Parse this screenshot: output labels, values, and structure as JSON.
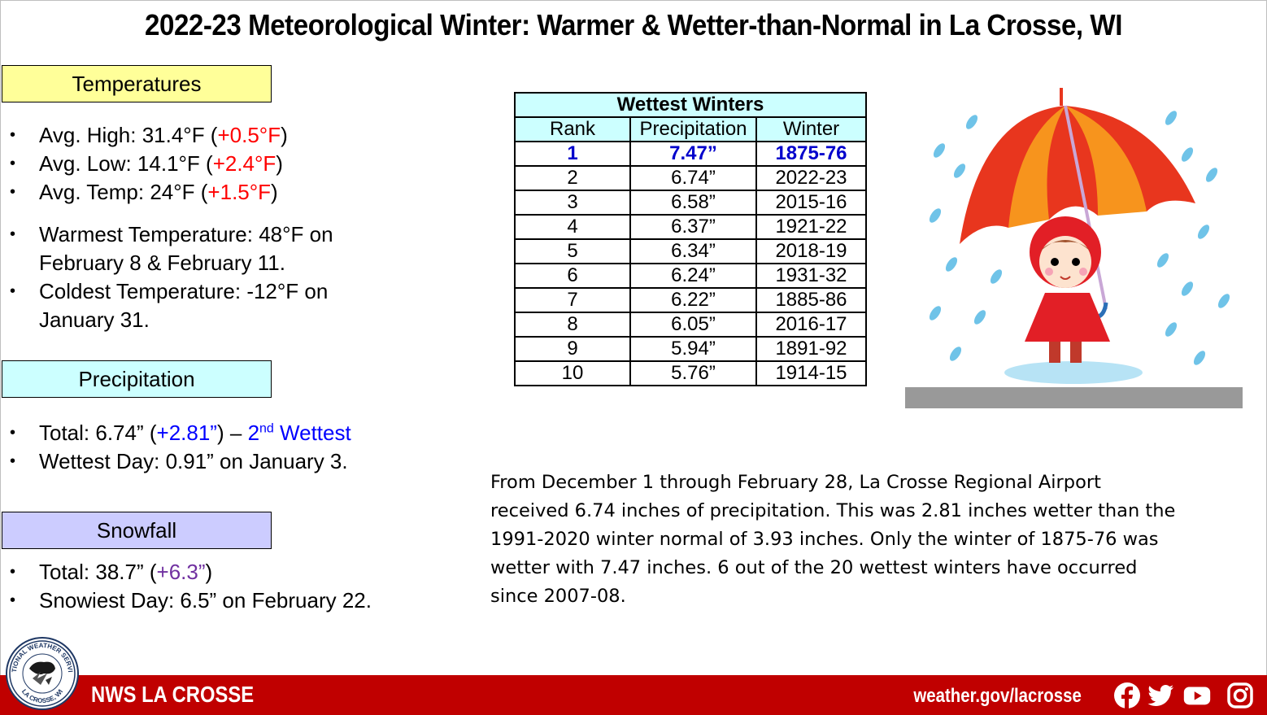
{
  "title": "2022-23 Meteorological Winter: Warmer & Wetter-than-Normal in La Crosse, WI",
  "temperatures": {
    "heading": "Temperatures",
    "avg_high": {
      "label": "Avg. High:  31.4°F (",
      "anomaly": "+0.5°F",
      "close": ")"
    },
    "avg_low": {
      "label": "Avg. Low:  14.1°F (",
      "anomaly": "+2.4°F",
      "close": ")"
    },
    "avg_temp": {
      "label": "Avg. Temp:  24°F (",
      "anomaly": "+1.5°F",
      "close": ")"
    },
    "warmest_1": "Warmest Temperature: 48°F on",
    "warmest_2": "February 8 & February 11.",
    "coldest_1": "Coldest Temperature: -12°F on",
    "coldest_2": "January 31."
  },
  "precipitation": {
    "heading": "Precipitation",
    "total_label": "Total:  6.74” (",
    "total_anomaly": "+2.81”",
    "total_close": ")",
    "dash": " – ",
    "rank_num": "2",
    "rank_sup": "nd",
    "rank_word": " Wettest",
    "wettest_day": "Wettest Day: 0.91” on January 3."
  },
  "snowfall": {
    "heading": "Snowfall",
    "total_label": "Total:  38.7” (",
    "total_anomaly": "+6.3”",
    "total_close": ")",
    "snowiest_day": "Snowiest Day: 6.5” on February 22."
  },
  "table": {
    "caption": "Wettest Winters",
    "headers": [
      "Rank",
      "Precipitation",
      "Winter"
    ],
    "rows": [
      [
        "1",
        "7.47”",
        "1875-76"
      ],
      [
        "2",
        "6.74”",
        "2022-23"
      ],
      [
        "3",
        "6.58”",
        "2015-16"
      ],
      [
        "4",
        "6.37”",
        "1921-22"
      ],
      [
        "5",
        "6.34”",
        "2018-19"
      ],
      [
        "6",
        "6.24”",
        "1931-32"
      ],
      [
        "7",
        "6.22”",
        "1885-86"
      ],
      [
        "8",
        "6.05”",
        "2016-17"
      ],
      [
        "9",
        "5.94”",
        "1891-92"
      ],
      [
        "10",
        "5.76”",
        "1914-15"
      ]
    ]
  },
  "summary": [
    "From December 1 through February 28, La Crosse Regional Airport",
    "received 6.74 inches of precipitation. This was 2.81 inches wetter than the",
    "1991-2020 winter normal of 3.93 inches. Only the winter of 1875-76 was",
    "wetter with 7.47 inches. 6 out of the 20 wettest winters have occurred",
    "since 2007-08."
  ],
  "footer": {
    "office": "NWS LA CROSSE",
    "url": "weather.gov/lacrosse",
    "logo_top_text": "NATIONAL WEATHER SERVICE",
    "logo_bottom_text": "LA CROSSE, WI",
    "icons": [
      "facebook-icon",
      "twitter-icon",
      "youtube-icon",
      "instagram-icon"
    ]
  },
  "colors": {
    "temperatures_box": "#ffff99",
    "precipitation_box": "#ccffff",
    "snowfall_box": "#ccccff",
    "footer": "#c00000",
    "anomaly_warm": "#ff0000",
    "anomaly_wet": "#0000ff",
    "anomaly_snow": "#7030a0"
  }
}
